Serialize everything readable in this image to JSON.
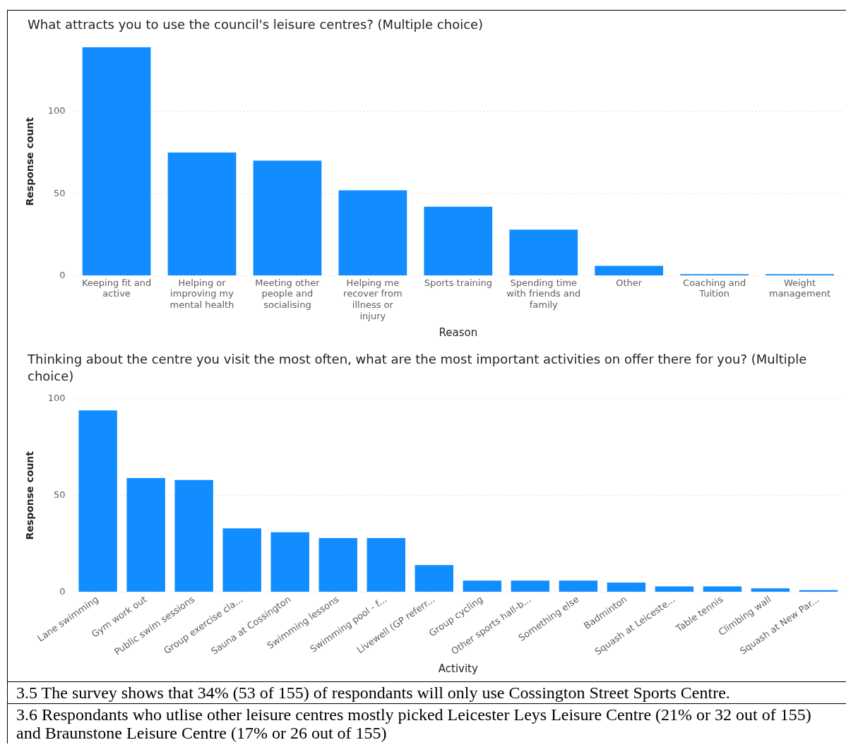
{
  "chart_data": [
    {
      "type": "bar",
      "title": "What attracts you to use the council's leisure centres? (Multiple choice)",
      "xlabel": "Reason",
      "ylabel": "Response count",
      "categories": [
        "Keeping fit and active",
        "Helping or improving my mental health",
        "Meeting other people and socialising",
        "Helping me recover from illness or injury",
        "Sports training",
        "Spending time with friends and family",
        "Other",
        "Coaching and Tuition",
        "Weight management"
      ],
      "values": [
        139,
        75,
        70,
        52,
        42,
        28,
        6,
        1,
        1
      ],
      "color": "#118dff",
      "ylim": [
        0,
        139
      ],
      "yticks": [
        0,
        50,
        100
      ],
      "grid": "y",
      "legend": false
    },
    {
      "type": "bar",
      "title": "Thinking about the centre you visit the most often, what are the most important activities on offer there for you? (Multiple choice)",
      "xlabel": "Activity",
      "ylabel": "Response count",
      "categories": [
        "Lane swimming",
        "Gym work out",
        "Public swim sessions",
        "Group exercise cla...",
        "Sauna at Cossington",
        "Swimming lessons",
        "Swimming pool - f...",
        "Livewell (GP referr...",
        "Group cycling",
        "Other sports hall-b...",
        "Something else",
        "Badminton",
        "Squash at Leiceste...",
        "Table tennis",
        "Climbing wall",
        "Squash at New Par..."
      ],
      "values": [
        94,
        59,
        58,
        33,
        31,
        28,
        28,
        14,
        6,
        6,
        6,
        5,
        3,
        3,
        2,
        1
      ],
      "color": "#118dff",
      "ylim": [
        0,
        100
      ],
      "yticks": [
        0,
        50,
        100
      ],
      "grid": "y",
      "legend": false,
      "annotations": [
        "3.5 The survey shows that 34% (53 of 155) of respondants will only use Cossington Street Sports Centre.",
        "3.6 Respondants who utlise other leisure centres mostly picked Leicester Leys Leisure Centre (21% or 32 out of 155) and Braunstone Leisure Centre (17% or 26 out of 155)"
      ]
    }
  ]
}
